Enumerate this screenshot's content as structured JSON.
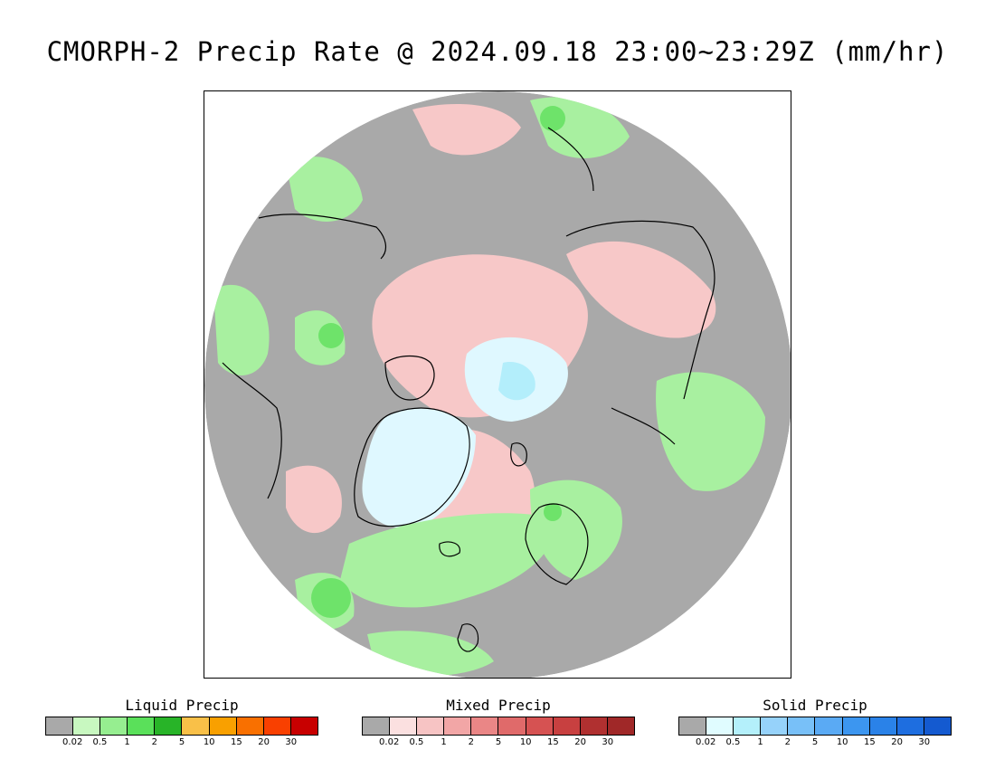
{
  "title": "CMORPH-2 Precip Rate @ 2024.09.18 23:00~23:29Z (mm/hr)",
  "map": {
    "projection": "north-polar-stereographic",
    "colors": {
      "no_precip": "#a9a9a9",
      "ocean_edge": "#ffffff",
      "liquid_light": "#a8f0a0",
      "liquid_mid": "#5fe05c",
      "mixed_light": "#f7c8c8",
      "mixed_mid": "#f2a5a5",
      "solid_light": "#dff8ff",
      "solid_mid": "#b3eefb",
      "coastline": "#000000"
    }
  },
  "legends": [
    {
      "title": "Liquid Precip",
      "swatches": [
        "#a9a9a9",
        "#c8f8c0",
        "#96ee90",
        "#5ae05a",
        "#28b428",
        "#f9c048",
        "#f9a000",
        "#f97000",
        "#f94000",
        "#c80000"
      ],
      "ticks": [
        "0.02",
        "0.5",
        "1",
        "2",
        "5",
        "10",
        "15",
        "20",
        "30"
      ]
    },
    {
      "title": "Mixed Precip",
      "swatches": [
        "#a9a9a9",
        "#fbe0e0",
        "#f7c4c4",
        "#f2a6a6",
        "#ea8686",
        "#e06a6a",
        "#d65252",
        "#c84040",
        "#b03030",
        "#a02828"
      ],
      "ticks": [
        "0.02",
        "0.5",
        "1",
        "2",
        "5",
        "10",
        "15",
        "20",
        "30"
      ]
    },
    {
      "title": "Solid Precip",
      "swatches": [
        "#a9a9a9",
        "#e0fcff",
        "#b4f0fb",
        "#96d2fa",
        "#78c0f8",
        "#5aaaf4",
        "#3c96f0",
        "#2a82e8",
        "#1e6ee0",
        "#145ad0"
      ],
      "ticks": [
        "0.02",
        "0.5",
        "1",
        "2",
        "5",
        "10",
        "15",
        "20",
        "30"
      ]
    }
  ]
}
